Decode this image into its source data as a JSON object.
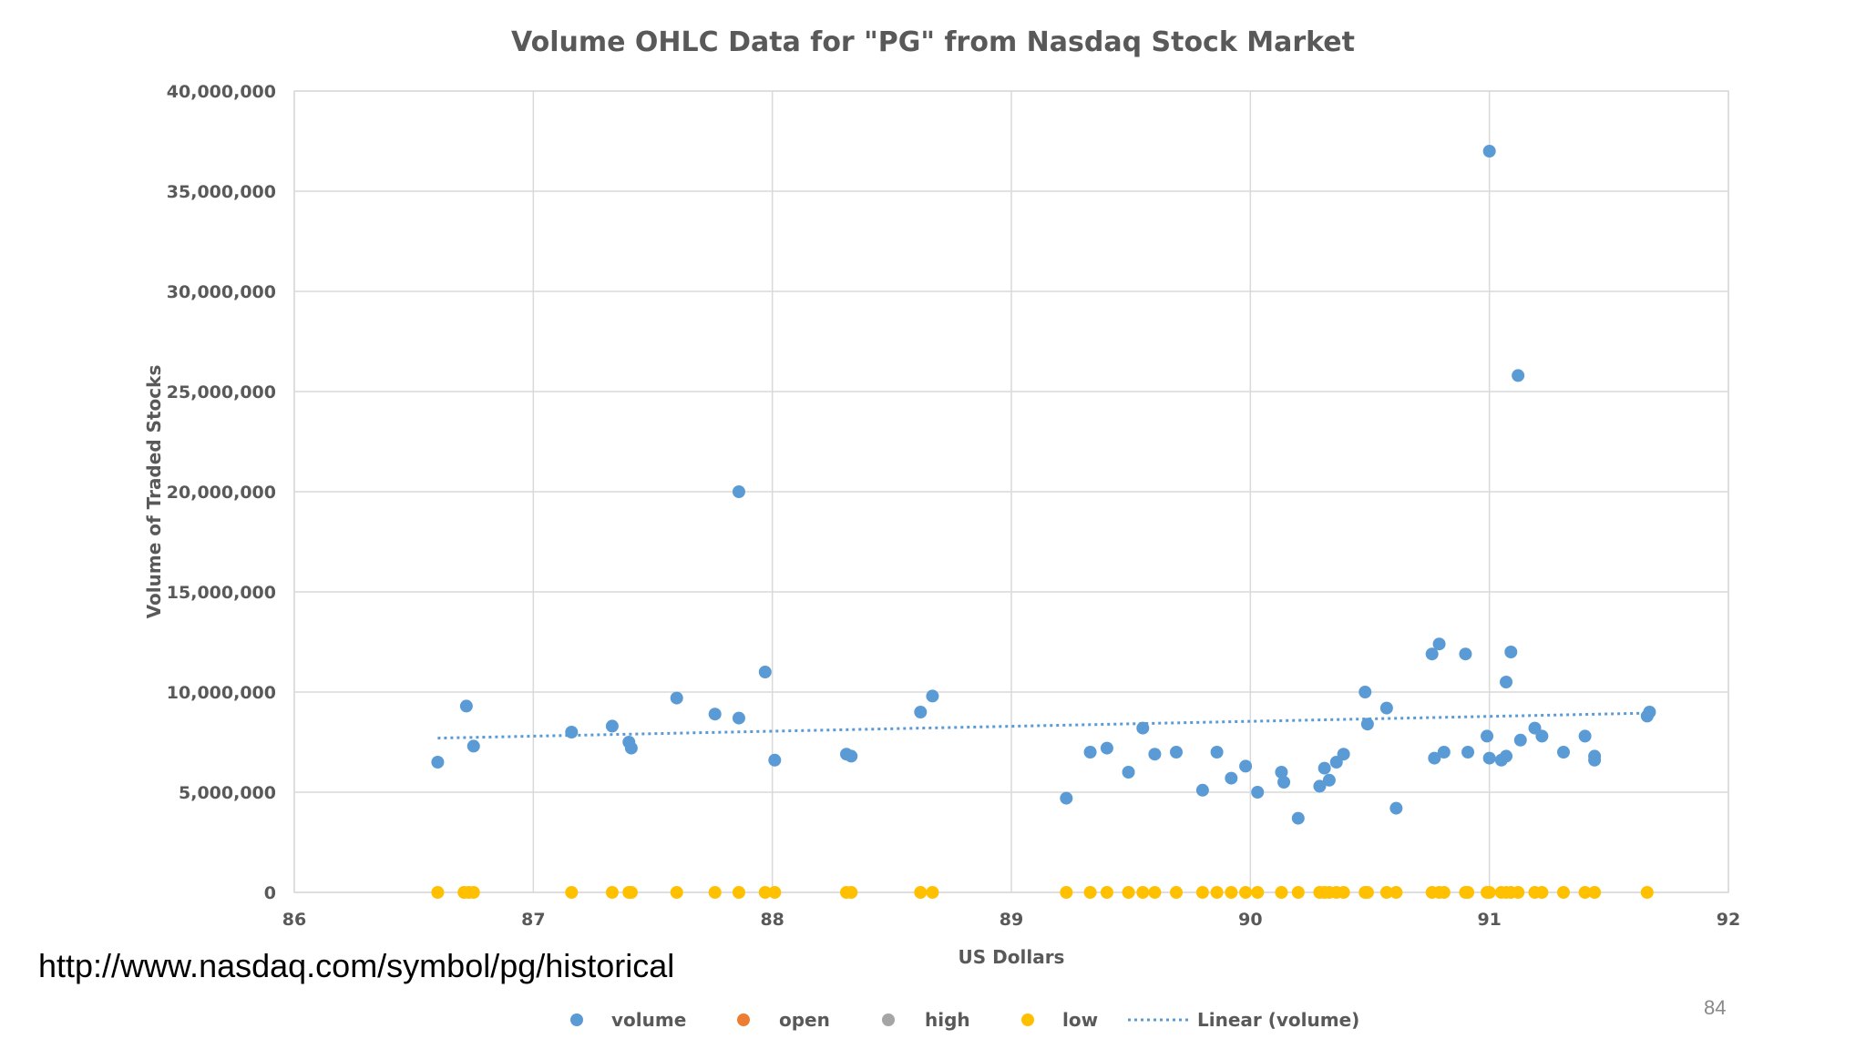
{
  "source_url": "http://www.nasdaq.com/symbol/pg/historical",
  "page_number": "84",
  "colors": {
    "volume": "#5B9BD5",
    "open": "#ED7D31",
    "high": "#A5A5A5",
    "low": "#FFC000",
    "gridline": "#D9D9D9",
    "text": "#595959"
  },
  "chart_data": {
    "type": "scatter",
    "title": "Volume OHLC Data for \"PG\" from Nasdaq Stock Market",
    "xlabel": "US Dollars",
    "ylabel": "Volume of Traded Stocks",
    "xlim": [
      86,
      92
    ],
    "ylim": [
      0,
      40000000
    ],
    "x_ticks": [
      "86",
      "87",
      "88",
      "89",
      "90",
      "91",
      "92"
    ],
    "y_ticks": [
      "0",
      "5,000,000",
      "10,000,000",
      "15,000,000",
      "20,000,000",
      "25,000,000",
      "30,000,000",
      "35,000,000",
      "40,000,000"
    ],
    "grid": true,
    "legend_position": "bottom",
    "legend": [
      "volume",
      "open",
      "high",
      "low",
      "Linear (volume)"
    ],
    "series": [
      {
        "name": "volume",
        "points": [
          [
            86.6,
            6500000
          ],
          [
            86.72,
            9300000
          ],
          [
            86.75,
            7300000
          ],
          [
            87.16,
            8000000
          ],
          [
            87.33,
            8300000
          ],
          [
            87.4,
            7500000
          ],
          [
            87.41,
            7200000
          ],
          [
            87.6,
            9700000
          ],
          [
            87.76,
            8900000
          ],
          [
            87.86,
            8700000
          ],
          [
            87.86,
            20000000
          ],
          [
            87.97,
            11000000
          ],
          [
            88.01,
            6600000
          ],
          [
            88.31,
            6900000
          ],
          [
            88.33,
            6800000
          ],
          [
            88.62,
            9000000
          ],
          [
            88.67,
            9800000
          ],
          [
            89.23,
            4700000
          ],
          [
            89.33,
            7000000
          ],
          [
            89.4,
            7200000
          ],
          [
            89.49,
            6000000
          ],
          [
            89.55,
            8200000
          ],
          [
            89.6,
            6900000
          ],
          [
            89.69,
            7000000
          ],
          [
            89.8,
            5100000
          ],
          [
            89.86,
            7000000
          ],
          [
            89.92,
            5700000
          ],
          [
            89.98,
            6300000
          ],
          [
            90.03,
            5000000
          ],
          [
            90.13,
            6000000
          ],
          [
            90.14,
            5500000
          ],
          [
            90.2,
            3700000
          ],
          [
            90.29,
            5300000
          ],
          [
            90.31,
            6200000
          ],
          [
            90.33,
            5600000
          ],
          [
            90.36,
            6500000
          ],
          [
            90.39,
            6900000
          ],
          [
            90.48,
            10000000
          ],
          [
            90.49,
            8400000
          ],
          [
            90.57,
            9200000
          ],
          [
            90.61,
            4200000
          ],
          [
            90.76,
            11900000
          ],
          [
            90.77,
            6700000
          ],
          [
            90.79,
            12400000
          ],
          [
            90.81,
            7000000
          ],
          [
            90.9,
            11900000
          ],
          [
            90.91,
            7000000
          ],
          [
            90.99,
            7800000
          ],
          [
            91.0,
            37000000
          ],
          [
            91.0,
            6700000
          ],
          [
            91.05,
            6600000
          ],
          [
            91.07,
            6800000
          ],
          [
            91.07,
            10500000
          ],
          [
            91.09,
            12000000
          ],
          [
            91.12,
            25800000
          ],
          [
            91.13,
            7600000
          ],
          [
            91.19,
            8200000
          ],
          [
            91.22,
            7800000
          ],
          [
            91.31,
            7000000
          ],
          [
            91.4,
            7800000
          ],
          [
            91.44,
            6800000
          ],
          [
            91.44,
            6600000
          ],
          [
            91.66,
            8800000
          ],
          [
            91.67,
            9000000
          ]
        ]
      },
      {
        "name": "open",
        "points": []
      },
      {
        "name": "high",
        "points": []
      },
      {
        "name": "low",
        "points": [
          [
            86.6,
            0
          ],
          [
            86.71,
            0
          ],
          [
            86.73,
            0
          ],
          [
            86.75,
            0
          ],
          [
            87.16,
            0
          ],
          [
            87.33,
            0
          ],
          [
            87.4,
            0
          ],
          [
            87.41,
            0
          ],
          [
            87.6,
            0
          ],
          [
            87.76,
            0
          ],
          [
            87.86,
            0
          ],
          [
            87.97,
            0
          ],
          [
            88.01,
            0
          ],
          [
            88.31,
            0
          ],
          [
            88.33,
            0
          ],
          [
            88.62,
            0
          ],
          [
            88.67,
            0
          ],
          [
            89.23,
            0
          ],
          [
            89.33,
            0
          ],
          [
            89.4,
            0
          ],
          [
            89.49,
            0
          ],
          [
            89.55,
            0
          ],
          [
            89.6,
            0
          ],
          [
            89.69,
            0
          ],
          [
            89.8,
            0
          ],
          [
            89.86,
            0
          ],
          [
            89.92,
            0
          ],
          [
            89.98,
            0
          ],
          [
            90.03,
            0
          ],
          [
            90.13,
            0
          ],
          [
            90.2,
            0
          ],
          [
            90.29,
            0
          ],
          [
            90.31,
            0
          ],
          [
            90.33,
            0
          ],
          [
            90.36,
            0
          ],
          [
            90.39,
            0
          ],
          [
            90.48,
            0
          ],
          [
            90.49,
            0
          ],
          [
            90.57,
            0
          ],
          [
            90.61,
            0
          ],
          [
            90.76,
            0
          ],
          [
            90.79,
            0
          ],
          [
            90.81,
            0
          ],
          [
            90.9,
            0
          ],
          [
            90.91,
            0
          ],
          [
            90.99,
            0
          ],
          [
            91.0,
            0
          ],
          [
            91.05,
            0
          ],
          [
            91.07,
            0
          ],
          [
            91.09,
            0
          ],
          [
            91.12,
            0
          ],
          [
            91.19,
            0
          ],
          [
            91.22,
            0
          ],
          [
            91.31,
            0
          ],
          [
            91.4,
            0
          ],
          [
            91.44,
            0
          ],
          [
            91.66,
            0
          ]
        ]
      }
    ],
    "trendline": {
      "name": "Linear (volume)",
      "series": "volume",
      "points": [
        [
          86.6,
          7700000
        ],
        [
          91.67,
          8950000
        ]
      ]
    }
  }
}
